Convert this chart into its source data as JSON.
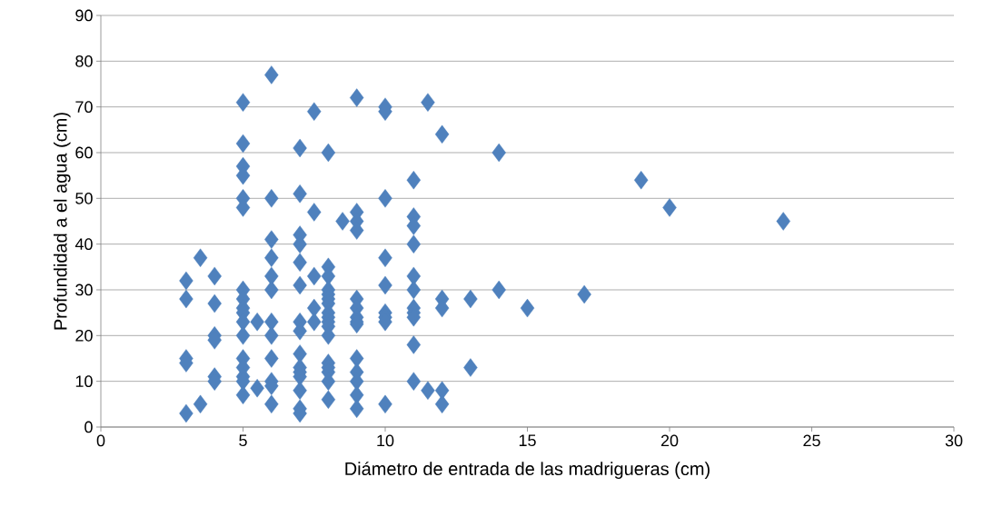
{
  "chart_data": {
    "type": "scatter",
    "xlabel": "Diámetro de entrada  de las madrigueras (cm)",
    "ylabel": "Profundidad a el agua (cm)",
    "x": [
      3,
      3,
      3,
      3,
      3,
      3.5,
      3.5,
      4,
      4,
      4,
      4,
      4,
      4,
      5,
      5,
      5,
      5,
      5,
      5,
      5,
      5,
      5,
      5,
      5,
      5,
      5,
      5,
      5,
      5,
      5,
      5.5,
      5.5,
      6,
      6,
      6,
      6,
      6,
      6,
      6,
      6,
      6,
      6,
      6,
      6,
      7,
      7,
      7,
      7,
      7,
      7,
      7,
      7,
      7,
      7,
      7,
      7,
      7,
      7,
      7,
      7.5,
      7.5,
      7.5,
      7.5,
      7.5,
      8,
      8,
      8,
      8,
      8,
      8,
      8,
      8,
      8,
      8,
      8,
      8,
      8,
      8,
      8,
      8,
      8,
      8.5,
      9,
      9,
      9,
      9,
      9,
      9,
      9,
      9,
      9,
      9,
      9,
      9,
      9,
      9,
      10,
      10,
      10,
      10,
      10,
      10,
      10,
      10,
      10,
      11,
      11,
      11,
      11,
      11,
      11,
      11,
      11,
      11,
      11,
      11,
      11.5,
      11.5,
      12,
      12,
      12,
      12,
      12,
      13,
      13,
      14,
      14,
      15,
      17,
      19,
      20,
      24
    ],
    "values": [
      32,
      28,
      15,
      14,
      3,
      37,
      5,
      33,
      27,
      20,
      19,
      11,
      10,
      71,
      62,
      57,
      55,
      50,
      48,
      30,
      28,
      26,
      25,
      23,
      20,
      15,
      13,
      11,
      10,
      7,
      23,
      8.5,
      77,
      50,
      41,
      37,
      33,
      30,
      23,
      20,
      15,
      10,
      9,
      5,
      61,
      51,
      42,
      40,
      36,
      31,
      23,
      21,
      16,
      13,
      12,
      11,
      8,
      4,
      3,
      69,
      47,
      33,
      26,
      23,
      60,
      35,
      33,
      30,
      29,
      28,
      27,
      25,
      24,
      23,
      22,
      20,
      14,
      13,
      12,
      10,
      6,
      45,
      72,
      47,
      45,
      43,
      28,
      26,
      24,
      23,
      22.5,
      15,
      12,
      10,
      7,
      4,
      70,
      69,
      50,
      37,
      31,
      25,
      24,
      23,
      5,
      54,
      46,
      44,
      40,
      33,
      30,
      26,
      25,
      24,
      18,
      10,
      71,
      8,
      64,
      28,
      26,
      8,
      5,
      28,
      13,
      60,
      30,
      26,
      29,
      54,
      48,
      45
    ],
    "color": "#4f81bd",
    "marker": "diamond",
    "grid": "y",
    "xlim": [
      0,
      30
    ],
    "xticks": [
      0,
      5,
      10,
      15,
      20,
      25,
      30
    ],
    "ylim": [
      0,
      90
    ],
    "yticks": [
      0,
      10,
      20,
      30,
      40,
      50,
      60,
      70,
      80,
      90
    ]
  }
}
